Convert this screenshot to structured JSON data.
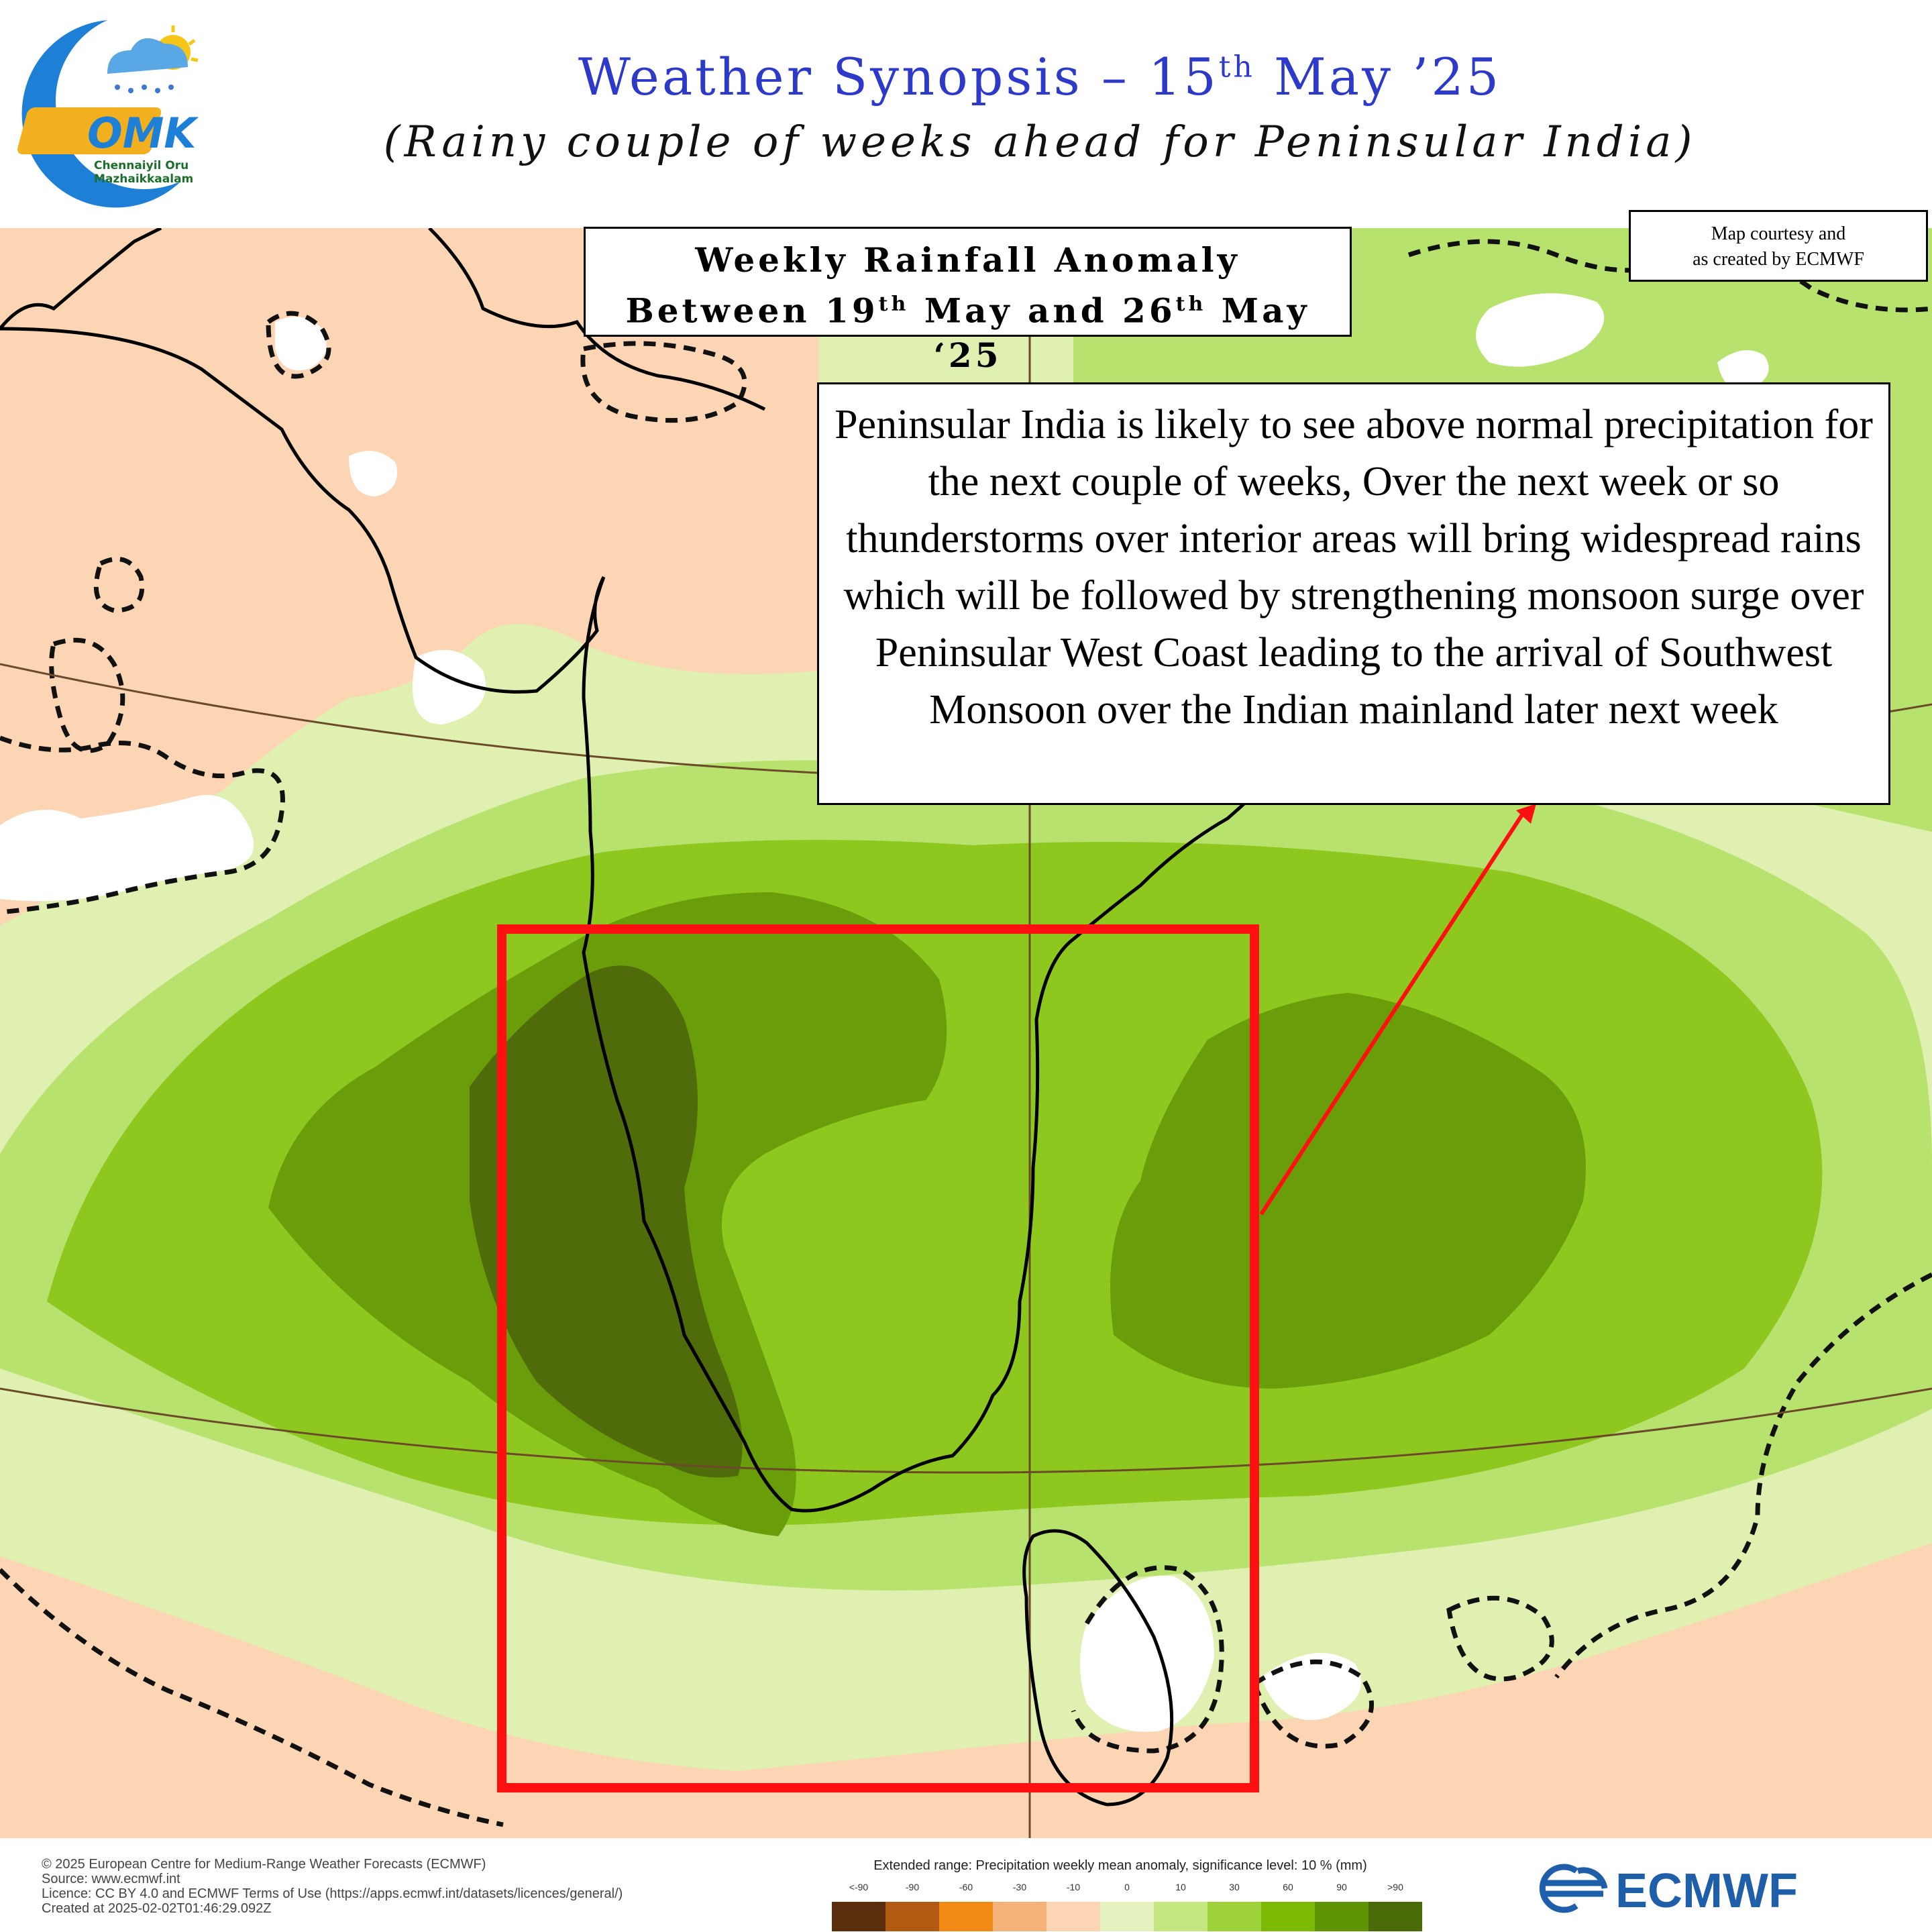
{
  "header": {
    "title_main": "Weather Synopsis – 15",
    "title_sup": "th",
    "title_rest": " May ’25",
    "subtitle": "(Rainy couple of weeks ahead for Peninsular India)",
    "logo_text": "OMK",
    "logo_line1": "Chennaiyil Oru",
    "logo_line2": "Mazhaikkaalam"
  },
  "anomaly_box": {
    "line1": "Weekly Rainfall Anomaly",
    "line2_a": "Between 19",
    "line2_sup1": "th",
    "line2_b": " May and 26",
    "line2_sup2": "th",
    "line2_c": " May ‘25"
  },
  "courtesy_box": {
    "line1": "Map courtesy and",
    "line2": "as created by ECMWF"
  },
  "description": {
    "text": "Peninsular India is likely to see above normal precipitation for the next couple of weeks, Over the next week or so thunderstorms over interior areas will bring widespread rains which will be followed by strengthening monsoon surge over Peninsular West Coast leading to the arrival of Southwest Monsoon over the Indian mainland later next week"
  },
  "footer": {
    "copyright": "© 2025 European Centre for Medium-Range Weather Forecasts (ECMWF)",
    "source": "Source: www.ecmwf.int",
    "licence": "Licence: CC BY 4.0 and ECMWF Terms of Use (https://apps.ecmwf.int/datasets/licences/general/)",
    "created": "Created at 2025-02-02T01:46:29.092Z",
    "brand": "ECMWF"
  },
  "legend": {
    "title": "Extended range: Precipitation weekly mean anomaly, significance level: 10 % (mm)",
    "ticks": [
      "<-90",
      "-90",
      "-60",
      "-30",
      "-10",
      "0",
      "10",
      "30",
      "60",
      "90",
      ">90"
    ],
    "colors": [
      "#5a2d0c",
      "#b05a12",
      "#f28a16",
      "#f7b27a",
      "#fcd6b4",
      "#e5f2bf",
      "#c3e67f",
      "#9fd23a",
      "#7dba06",
      "#5f9405",
      "#4a6b08"
    ]
  },
  "map_colors": {
    "land_dry": "#fcd5b5",
    "light_green": "#dff0b0",
    "mid_green": "#b7e26e",
    "green": "#8ec81f",
    "dark_green": "#6a9d0a",
    "darkest_green": "#506b0a",
    "highlight_box": "#ff1010"
  }
}
